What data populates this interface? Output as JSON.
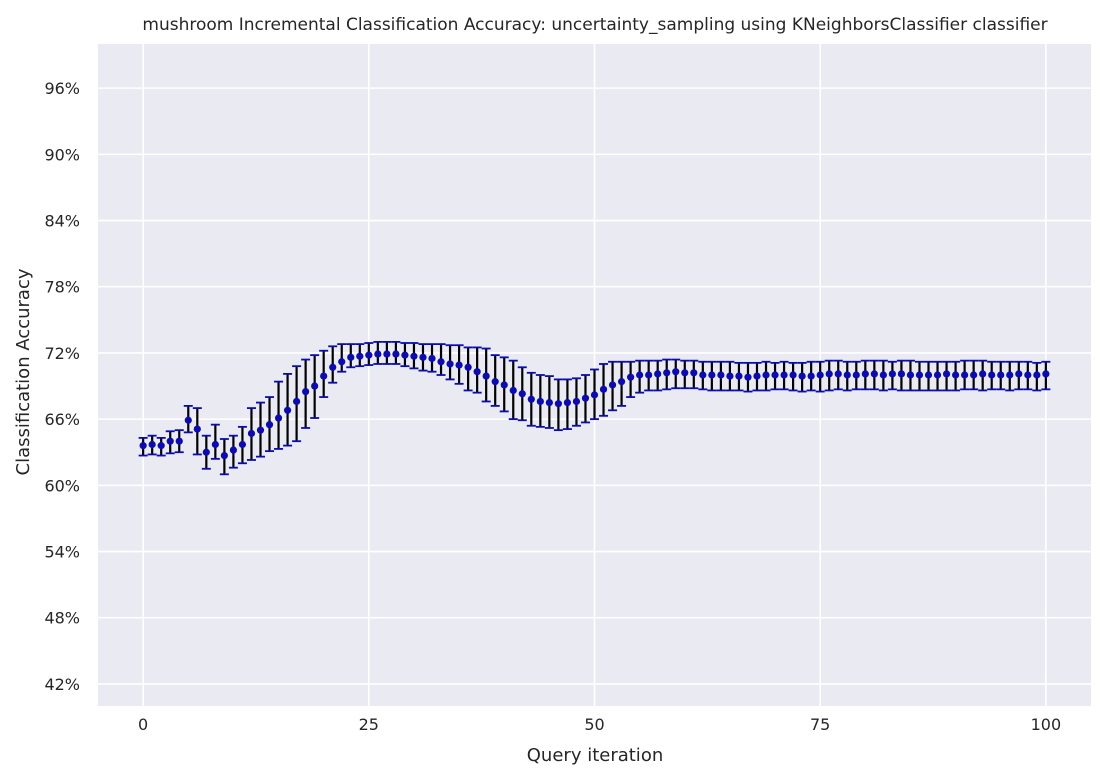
{
  "chart_data": {
    "type": "scatter",
    "title": "mushroom Incremental Classification Accuracy: uncertainty_sampling using KNeighborsClassifier classifier",
    "xlabel": "Query iteration",
    "ylabel": "Classification Accuracy",
    "xlim": [
      -5,
      105
    ],
    "ylim": [
      0.4,
      1.0
    ],
    "x_ticks": [
      0,
      25,
      50,
      75,
      100
    ],
    "x_tick_labels": [
      "0",
      "25",
      "50",
      "75",
      "100"
    ],
    "y_ticks": [
      0.42,
      0.48,
      0.54,
      0.6,
      0.66,
      0.72,
      0.78,
      0.84,
      0.9,
      0.96
    ],
    "y_tick_labels": [
      "42%",
      "48%",
      "54%",
      "60%",
      "66%",
      "72%",
      "78%",
      "84%",
      "90%",
      "96%"
    ],
    "grid": true,
    "colors": {
      "background": "#eaeaf2",
      "grid": "#ffffff",
      "marker": "#0b0baf",
      "errorbar": "#000000",
      "cap": "#0b0baf"
    },
    "series": [
      {
        "x": [
          0,
          1,
          2,
          3,
          4,
          5,
          6,
          7,
          8,
          9,
          10,
          11,
          12,
          13,
          14,
          15,
          16,
          17,
          18,
          19,
          20,
          21,
          22,
          23,
          24,
          25,
          26,
          27,
          28,
          29,
          30,
          31,
          32,
          33,
          34,
          35,
          36,
          37,
          38,
          39,
          40,
          41,
          42,
          43,
          44,
          45,
          46,
          47,
          48,
          49,
          50,
          51,
          52,
          53,
          54,
          55,
          56,
          57,
          58,
          59,
          60,
          61,
          62,
          63,
          64,
          65,
          66,
          67,
          68,
          69,
          70,
          71,
          72,
          73,
          74,
          75,
          76,
          77,
          78,
          79,
          80,
          81,
          82,
          83,
          84,
          85,
          86,
          87,
          88,
          89,
          90,
          91,
          92,
          93,
          94,
          95,
          96,
          97,
          98,
          99,
          100
        ],
        "y": [
          0.636,
          0.637,
          0.636,
          0.64,
          0.64,
          0.659,
          0.651,
          0.63,
          0.637,
          0.627,
          0.632,
          0.637,
          0.647,
          0.65,
          0.655,
          0.661,
          0.668,
          0.676,
          0.685,
          0.69,
          0.699,
          0.707,
          0.712,
          0.716,
          0.717,
          0.718,
          0.719,
          0.719,
          0.719,
          0.718,
          0.717,
          0.716,
          0.715,
          0.712,
          0.71,
          0.709,
          0.707,
          0.703,
          0.699,
          0.694,
          0.691,
          0.686,
          0.683,
          0.678,
          0.676,
          0.675,
          0.674,
          0.675,
          0.676,
          0.679,
          0.682,
          0.687,
          0.691,
          0.694,
          0.698,
          0.7,
          0.7,
          0.701,
          0.702,
          0.703,
          0.702,
          0.702,
          0.7,
          0.7,
          0.7,
          0.699,
          0.699,
          0.698,
          0.699,
          0.7,
          0.7,
          0.7,
          0.7,
          0.699,
          0.699,
          0.7,
          0.701,
          0.701,
          0.7,
          0.7,
          0.701,
          0.701,
          0.7,
          0.701,
          0.701,
          0.7,
          0.7,
          0.7,
          0.7,
          0.701,
          0.7,
          0.7,
          0.7,
          0.701,
          0.7,
          0.7,
          0.7,
          0.701,
          0.7,
          0.7,
          0.701
        ],
        "yerr_low": [
          0.627,
          0.628,
          0.627,
          0.629,
          0.63,
          0.648,
          0.628,
          0.615,
          0.624,
          0.61,
          0.616,
          0.62,
          0.623,
          0.626,
          0.631,
          0.633,
          0.636,
          0.64,
          0.652,
          0.661,
          0.68,
          0.693,
          0.703,
          0.707,
          0.708,
          0.709,
          0.71,
          0.71,
          0.71,
          0.708,
          0.706,
          0.704,
          0.703,
          0.7,
          0.696,
          0.692,
          0.686,
          0.684,
          0.676,
          0.672,
          0.667,
          0.66,
          0.659,
          0.654,
          0.653,
          0.652,
          0.65,
          0.651,
          0.654,
          0.657,
          0.66,
          0.663,
          0.668,
          0.672,
          0.68,
          0.684,
          0.686,
          0.686,
          0.687,
          0.688,
          0.688,
          0.688,
          0.687,
          0.686,
          0.686,
          0.686,
          0.686,
          0.685,
          0.686,
          0.686,
          0.687,
          0.687,
          0.686,
          0.685,
          0.686,
          0.685,
          0.686,
          0.687,
          0.686,
          0.687,
          0.687,
          0.687,
          0.686,
          0.687,
          0.686,
          0.686,
          0.686,
          0.686,
          0.686,
          0.686,
          0.686,
          0.687,
          0.687,
          0.686,
          0.687,
          0.687,
          0.686,
          0.687,
          0.687,
          0.686,
          0.687
        ],
        "yerr_high": [
          0.643,
          0.645,
          0.643,
          0.649,
          0.65,
          0.672,
          0.67,
          0.645,
          0.655,
          0.642,
          0.645,
          0.653,
          0.67,
          0.675,
          0.68,
          0.694,
          0.701,
          0.708,
          0.714,
          0.718,
          0.722,
          0.726,
          0.728,
          0.728,
          0.728,
          0.729,
          0.73,
          0.73,
          0.73,
          0.729,
          0.729,
          0.728,
          0.728,
          0.728,
          0.727,
          0.727,
          0.725,
          0.725,
          0.724,
          0.718,
          0.716,
          0.713,
          0.707,
          0.702,
          0.7,
          0.699,
          0.696,
          0.696,
          0.697,
          0.7,
          0.705,
          0.71,
          0.712,
          0.712,
          0.712,
          0.713,
          0.713,
          0.713,
          0.714,
          0.714,
          0.713,
          0.713,
          0.712,
          0.712,
          0.712,
          0.712,
          0.711,
          0.711,
          0.711,
          0.712,
          0.711,
          0.712,
          0.711,
          0.711,
          0.712,
          0.712,
          0.713,
          0.713,
          0.712,
          0.712,
          0.713,
          0.713,
          0.713,
          0.712,
          0.713,
          0.713,
          0.712,
          0.712,
          0.712,
          0.712,
          0.712,
          0.713,
          0.713,
          0.713,
          0.712,
          0.712,
          0.712,
          0.712,
          0.712,
          0.711,
          0.712
        ]
      }
    ]
  }
}
